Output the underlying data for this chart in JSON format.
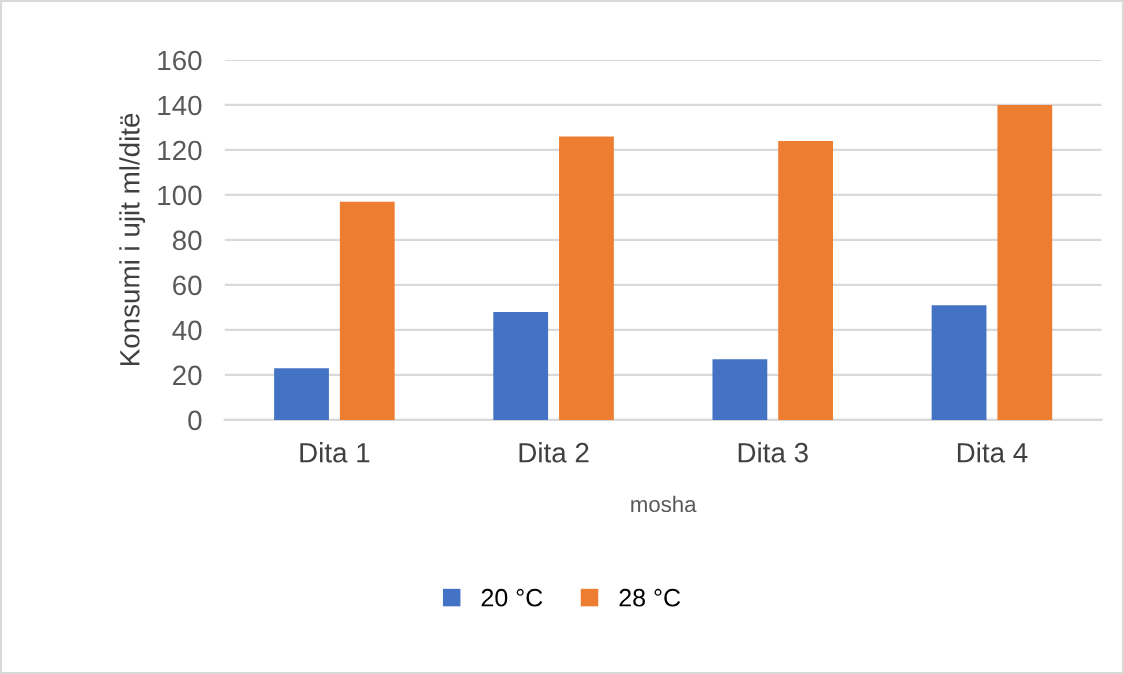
{
  "chart_data": {
    "type": "bar",
    "xlabel": "mosha",
    "ylabel": "Konsumi i ujit ml/ditë",
    "categories": [
      "Dita 1",
      "Dita 2",
      "Dita 3",
      "Dita 4"
    ],
    "series": [
      {
        "name": "20 °C",
        "color": "#4472c4",
        "values": [
          23,
          48,
          27,
          51
        ]
      },
      {
        "name": "28 °C",
        "color": "#ed7d31",
        "values": [
          97,
          126,
          124,
          140
        ]
      }
    ],
    "ylim": [
      0,
      160
    ],
    "yticks": [
      0,
      20,
      40,
      60,
      80,
      100,
      120,
      140,
      160
    ],
    "grid": "y",
    "legend": "bottom"
  }
}
